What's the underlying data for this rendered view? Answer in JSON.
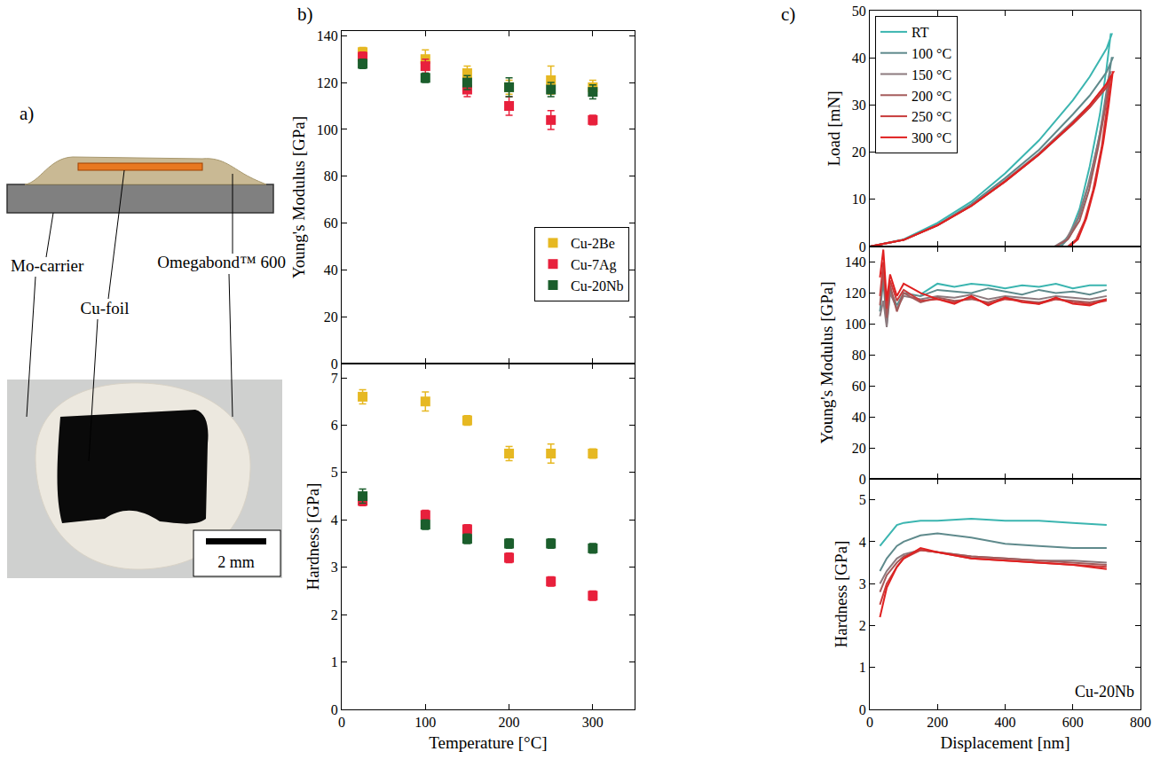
{
  "diagram": {
    "annotations": [
      "a)"
    ],
    "labels": [
      "Mo-carrier",
      "Cu-foil",
      "Omegabond™ 600"
    ],
    "scale_bar": "2 mm"
  },
  "chart_data": [
    {
      "type": "scatter",
      "marker": "square",
      "annotations": [
        "b)"
      ],
      "ylabel": "Young's Modulus [GPa]",
      "xlim": [
        0,
        350
      ],
      "xticks": [
        0,
        100,
        200,
        300
      ],
      "ylim": [
        0,
        142
      ],
      "yticks": [
        0,
        20,
        40,
        60,
        80,
        100,
        120,
        140
      ],
      "tick_labels": "y",
      "legend": "lower right",
      "x": [
        25,
        100,
        150,
        200,
        250,
        300
      ],
      "series": [
        {
          "name": "Cu-2Be",
          "color": "#e6b822",
          "values": [
            133,
            130,
            124,
            118,
            121,
            118
          ],
          "errors": [
            2,
            4,
            3,
            3,
            6,
            3
          ]
        },
        {
          "name": "Cu-7Ag",
          "color": "#e8203c",
          "values": [
            131,
            127,
            117,
            110,
            104,
            104
          ],
          "errors": [
            2,
            3,
            3,
            4,
            4,
            2
          ]
        },
        {
          "name": "Cu-20Nb",
          "color": "#1b5e2c",
          "values": [
            128,
            122,
            120,
            118,
            117,
            116
          ],
          "errors": [
            2,
            2,
            3,
            4,
            3,
            3
          ]
        }
      ]
    },
    {
      "type": "scatter",
      "marker": "square",
      "ylabel": "Hardness [GPa]",
      "xlabel": "Temperature [°C]",
      "xlim": [
        0,
        350
      ],
      "xticks": [
        0,
        100,
        200,
        300
      ],
      "ylim": [
        0,
        7.3
      ],
      "yticks": [
        0,
        1,
        2,
        3,
        4,
        5,
        6,
        7
      ],
      "x": [
        25,
        100,
        150,
        200,
        250,
        300
      ],
      "series": [
        {
          "name": "Cu-2Be",
          "color": "#e6b822",
          "values": [
            6.6,
            6.5,
            6.1,
            5.4,
            5.4,
            5.4
          ],
          "errors": [
            0.15,
            0.2,
            0.1,
            0.15,
            0.2,
            0.1
          ]
        },
        {
          "name": "Cu-7Ag",
          "color": "#e8203c",
          "values": [
            4.4,
            4.1,
            3.8,
            3.2,
            2.7,
            2.4
          ],
          "errors": [
            0.1,
            0.1,
            0.1,
            0.1,
            0.1,
            0.1
          ]
        },
        {
          "name": "Cu-20Nb",
          "color": "#1b5e2c",
          "values": [
            4.5,
            3.9,
            3.6,
            3.5,
            3.5,
            3.4
          ],
          "errors": [
            0.15,
            0.1,
            0.1,
            0.1,
            0.1,
            0.1
          ]
        }
      ]
    },
    {
      "type": "line",
      "annotations": [
        "c)"
      ],
      "ylabel": "Load [mN]",
      "xlim": [
        0,
        800
      ],
      "xticks": [
        0,
        200,
        400,
        600,
        800
      ],
      "ylim": [
        0,
        50
      ],
      "yticks": [
        0,
        10,
        20,
        30,
        40,
        50
      ],
      "tick_labels": "y",
      "legend": "upper left",
      "series": [
        {
          "name": "RT",
          "color": "#3bb5b0",
          "x": [
            0,
            100,
            200,
            300,
            400,
            500,
            600,
            650,
            700,
            715,
            712,
            700,
            680,
            650,
            620,
            590,
            560
          ],
          "values": [
            0,
            1.5,
            5,
            9.5,
            15.5,
            22.5,
            31,
            36,
            42,
            45,
            45,
            38,
            28,
            17,
            8,
            2.5,
            0
          ]
        },
        {
          "name": "100 °C",
          "color": "#5f8a8c",
          "x": [
            0,
            100,
            200,
            300,
            400,
            500,
            600,
            650,
            700,
            718,
            715,
            700,
            680,
            650,
            620,
            590,
            565
          ],
          "values": [
            0,
            1.4,
            4.6,
            9,
            14.5,
            20.5,
            28,
            32,
            37,
            40,
            40,
            33,
            24,
            14,
            6.5,
            2,
            0
          ]
        },
        {
          "name": "150 °C",
          "color": "#8c7a7e",
          "x": [
            0,
            100,
            200,
            300,
            400,
            500,
            600,
            650,
            700,
            712,
            710,
            695,
            675,
            645,
            615,
            580,
            545
          ],
          "values": [
            0,
            1.4,
            4.5,
            8.7,
            14,
            19.8,
            26.5,
            30,
            34.5,
            37,
            37,
            30,
            22,
            13,
            6,
            1.5,
            0
          ]
        },
        {
          "name": "200 °C",
          "color": "#a45a5a",
          "x": [
            0,
            100,
            200,
            300,
            400,
            500,
            600,
            650,
            700,
            712,
            710,
            695,
            675,
            648,
            620,
            585,
            550
          ],
          "values": [
            0,
            1.4,
            4.5,
            8.6,
            13.8,
            19.5,
            26,
            29.5,
            33.8,
            36,
            36,
            29,
            21,
            12,
            5.5,
            1.5,
            0
          ]
        },
        {
          "name": "250 °C",
          "color": "#c83c3c",
          "x": [
            0,
            100,
            200,
            300,
            400,
            500,
            600,
            650,
            700,
            714,
            712,
            700,
            685,
            660,
            635,
            610,
            585
          ],
          "values": [
            0,
            1.4,
            4.5,
            8.6,
            13.8,
            19.5,
            26,
            29.5,
            33.8,
            36,
            36,
            29,
            21,
            12,
            5.5,
            1.5,
            0
          ]
        },
        {
          "name": "300 °C",
          "color": "#e02020",
          "x": [
            0,
            100,
            200,
            300,
            400,
            500,
            600,
            650,
            700,
            720,
            718,
            706,
            690,
            666,
            640,
            615,
            590
          ],
          "values": [
            0,
            1.4,
            4.5,
            8.6,
            13.8,
            19.5,
            26.2,
            30,
            34.5,
            37,
            37,
            30,
            22,
            13,
            6,
            1.5,
            0
          ]
        }
      ]
    },
    {
      "type": "line",
      "ylabel": "Young's Modulus [GPa]",
      "xlim": [
        0,
        800
      ],
      "xticks": [
        0,
        200,
        400,
        600,
        800
      ],
      "ylim": [
        0,
        150
      ],
      "yticks": [
        0,
        20,
        40,
        60,
        80,
        100,
        120,
        140
      ],
      "tick_labels": "y",
      "series": [
        {
          "name": "RT",
          "color": "#3bb5b0",
          "x": [
            150,
            200,
            250,
            300,
            350,
            400,
            450,
            500,
            550,
            600,
            650,
            700
          ],
          "values": [
            119,
            126,
            124,
            126,
            125,
            123,
            125,
            124,
            126,
            123,
            125,
            125
          ]
        },
        {
          "name": "100 °C",
          "color": "#5f8a8c",
          "x": [
            30,
            40,
            50,
            60,
            80,
            100,
            150,
            200,
            250,
            300,
            350,
            400,
            450,
            500,
            550,
            600,
            650,
            700
          ],
          "values": [
            108,
            128,
            100,
            122,
            112,
            120,
            118,
            122,
            121,
            120,
            123,
            121,
            119,
            122,
            120,
            121,
            119,
            122
          ]
        },
        {
          "name": "150 °C",
          "color": "#8c7a7e",
          "x": [
            30,
            40,
            50,
            60,
            80,
            100,
            150,
            200,
            250,
            300,
            350,
            400,
            450,
            500,
            550,
            600,
            650,
            700
          ],
          "values": [
            105,
            115,
            98,
            120,
            110,
            118,
            116,
            118,
            117,
            119,
            116,
            118,
            117,
            116,
            118,
            117,
            116,
            118
          ]
        },
        {
          "name": "200 °C",
          "color": "#a45a5a",
          "x": [
            30,
            40,
            50,
            60,
            80,
            100,
            150,
            200,
            250,
            300,
            350,
            400,
            450,
            500,
            550,
            600,
            650,
            700
          ],
          "values": [
            112,
            135,
            104,
            125,
            108,
            120,
            114,
            117,
            115,
            116,
            114,
            117,
            115,
            114,
            116,
            115,
            114,
            116
          ]
        },
        {
          "name": "250 °C",
          "color": "#c83c3c",
          "x": [
            30,
            40,
            50,
            60,
            80,
            100,
            150,
            200,
            250,
            300,
            350,
            400,
            450,
            500,
            550,
            600,
            650,
            700
          ],
          "values": [
            118,
            140,
            110,
            128,
            115,
            122,
            115,
            116,
            114,
            117,
            113,
            116,
            115,
            113,
            116,
            114,
            113,
            115
          ]
        },
        {
          "name": "300 °C",
          "color": "#e02020",
          "x": [
            30,
            40,
            50,
            60,
            80,
            100,
            150,
            200,
            250,
            300,
            350,
            400,
            450,
            500,
            550,
            600,
            650,
            700
          ],
          "values": [
            130,
            148,
            115,
            132,
            118,
            126,
            120,
            116,
            113,
            118,
            112,
            117,
            114,
            113,
            117,
            113,
            112,
            116
          ]
        }
      ]
    },
    {
      "type": "line",
      "annotations": [
        "Cu-20Nb"
      ],
      "ylabel": "Hardness [GPa]",
      "xlabel": "Displacement [nm]",
      "xlim": [
        0,
        800
      ],
      "xticks": [
        0,
        200,
        400,
        600,
        800
      ],
      "ylim": [
        0,
        5.5
      ],
      "yticks": [
        0,
        1,
        2,
        3,
        4,
        5
      ],
      "series": [
        {
          "name": "RT",
          "color": "#3bb5b0",
          "x": [
            30,
            50,
            80,
            100,
            150,
            200,
            300,
            400,
            500,
            600,
            700
          ],
          "values": [
            3.9,
            4.1,
            4.4,
            4.45,
            4.5,
            4.5,
            4.55,
            4.5,
            4.5,
            4.45,
            4.4
          ]
        },
        {
          "name": "100 °C",
          "color": "#5f8a8c",
          "x": [
            30,
            50,
            80,
            100,
            150,
            200,
            300,
            400,
            500,
            600,
            700
          ],
          "values": [
            3.3,
            3.6,
            3.9,
            4.0,
            4.15,
            4.2,
            4.1,
            3.95,
            3.9,
            3.85,
            3.85
          ]
        },
        {
          "name": "150 °C",
          "color": "#8c7a7e",
          "x": [
            30,
            50,
            80,
            100,
            150,
            200,
            300,
            400,
            500,
            600,
            700
          ],
          "values": [
            3.0,
            3.3,
            3.6,
            3.7,
            3.8,
            3.75,
            3.65,
            3.6,
            3.55,
            3.55,
            3.5
          ]
        },
        {
          "name": "200 °C",
          "color": "#a45a5a",
          "x": [
            30,
            50,
            80,
            100,
            150,
            200,
            300,
            400,
            500,
            600,
            700
          ],
          "values": [
            2.8,
            3.2,
            3.5,
            3.65,
            3.8,
            3.75,
            3.65,
            3.6,
            3.55,
            3.5,
            3.45
          ]
        },
        {
          "name": "250 °C",
          "color": "#c83c3c",
          "x": [
            30,
            50,
            80,
            100,
            150,
            200,
            300,
            400,
            500,
            600,
            700
          ],
          "values": [
            2.5,
            3.0,
            3.4,
            3.6,
            3.8,
            3.75,
            3.6,
            3.55,
            3.5,
            3.45,
            3.4
          ]
        },
        {
          "name": "300 °C",
          "color": "#e02020",
          "x": [
            30,
            50,
            80,
            100,
            150,
            200,
            300,
            400,
            500,
            600,
            700
          ],
          "values": [
            2.2,
            2.9,
            3.4,
            3.6,
            3.85,
            3.75,
            3.6,
            3.55,
            3.5,
            3.45,
            3.35
          ]
        }
      ]
    }
  ]
}
